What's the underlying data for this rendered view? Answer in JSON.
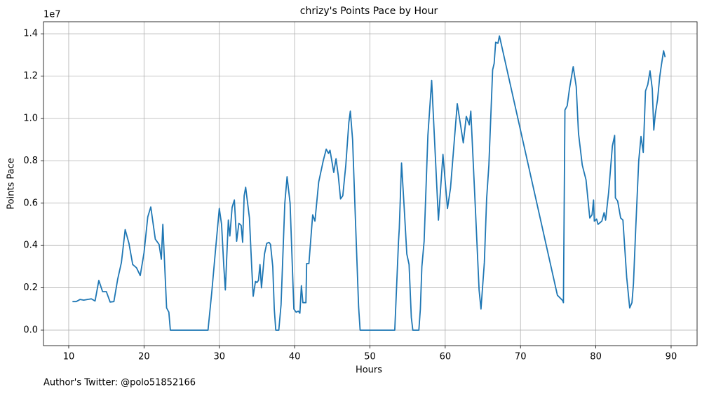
{
  "chart_data": {
    "type": "line",
    "title": "chrizy's Points Pace by Hour",
    "x_label": "Hours",
    "y_label": "Points Pace",
    "offset_label": "1e7",
    "footnote": "Author's Twitter: @polo51852166",
    "color": "#1f77b4",
    "grid": true,
    "xlim": [
      6.65,
      93.45
    ],
    "ylim": [
      -0.073,
      1.457
    ],
    "xticks": [
      10,
      20,
      30,
      40,
      50,
      60,
      70,
      80,
      90
    ],
    "yticks": [
      {
        "value": 0,
        "label": "0.0"
      },
      0.2,
      0.4,
      0.6,
      0.8,
      {
        "value": 1,
        "label": "1.0"
      },
      1.2,
      1.4
    ],
    "x": [
      10.5,
      11,
      11.5,
      12,
      12.5,
      13,
      13.5,
      14,
      14.5,
      15,
      15.5,
      16,
      16.5,
      17,
      17.5,
      18,
      18.5,
      19,
      19.5,
      20,
      20.5,
      20.9,
      21.5,
      22,
      22.3,
      22.5,
      23,
      23.3,
      23.5,
      28.5,
      29,
      29.5,
      30,
      30.3,
      30.6,
      30.8,
      31.2,
      31.4,
      31.7,
      32,
      32.3,
      32.6,
      32.9,
      33.1,
      33.3,
      33.5,
      34,
      34.3,
      34.5,
      34.8,
      35,
      35.2,
      35.4,
      35.6,
      36,
      36.3,
      36.6,
      36.8,
      37.1,
      37.3,
      37.5,
      37.9,
      38.2,
      38.7,
      39,
      39.4,
      39.7,
      39.9,
      40.2,
      40.5,
      40.7,
      40.9,
      41.1,
      41.5,
      41.6,
      41.9,
      42.4,
      42.7,
      43.2,
      43.8,
      44.2,
      44.5,
      44.7,
      45.2,
      45.5,
      45.8,
      46.1,
      46.4,
      46.8,
      47.2,
      47.4,
      47.7,
      48.1,
      48.5,
      48.7,
      53.3,
      53.8,
      53.9,
      54.2,
      54.6,
      54.9,
      55.2,
      55.5,
      55.7,
      56.5,
      56.7,
      56.9,
      57.2,
      57.7,
      58.2,
      59.1,
      59.7,
      60.3,
      60.7,
      61.6,
      62.4,
      62.8,
      63.2,
      63.4,
      64,
      64.5,
      64.75,
      65.2,
      65.5,
      65.8,
      66.3,
      66.5,
      66.7,
      67,
      67.2,
      74.9,
      75.6,
      75.7,
      75.9,
      76.2,
      76.5,
      77,
      77.4,
      77.7,
      78.2,
      78.7,
      79.2,
      79.5,
      79.7,
      79.8,
      80.1,
      80.3,
      80.8,
      81.1,
      81.3,
      81.7,
      82.2,
      82.5,
      82.6,
      82.9,
      83.3,
      83.6,
      84.1,
      84.5,
      84.8,
      85,
      85.3,
      85.7,
      86,
      86.3,
      86.6,
      86.9,
      87.2,
      87.5,
      87.7,
      87.9,
      88.2,
      88.5,
      88.7,
      89,
      89.2
    ],
    "values": [
      0.135,
      0.135,
      0.145,
      0.142,
      0.145,
      0.148,
      0.138,
      0.235,
      0.182,
      0.182,
      0.133,
      0.135,
      0.24,
      0.32,
      0.475,
      0.41,
      0.31,
      0.295,
      0.258,
      0.365,
      0.535,
      0.582,
      0.43,
      0.405,
      0.335,
      0.5,
      0.105,
      0.085,
      0,
      0,
      0.18,
      0.38,
      0.575,
      0.5,
      0.3,
      0.19,
      0.52,
      0.445,
      0.58,
      0.615,
      0.42,
      0.505,
      0.495,
      0.415,
      0.635,
      0.675,
      0.53,
      0.3,
      0.16,
      0.23,
      0.225,
      0.235,
      0.31,
      0.2,
      0.36,
      0.41,
      0.415,
      0.405,
      0.3,
      0.1,
      0,
      0,
      0.12,
      0.6,
      0.725,
      0.6,
      0.3,
      0.1,
      0.085,
      0.09,
      0.08,
      0.21,
      0.13,
      0.13,
      0.315,
      0.315,
      0.545,
      0.515,
      0.7,
      0.8,
      0.855,
      0.835,
      0.85,
      0.745,
      0.81,
      0.73,
      0.62,
      0.635,
      0.78,
      0.98,
      1.035,
      0.9,
      0.5,
      0.11,
      0,
      0,
      0.42,
      0.48,
      0.79,
      0.55,
      0.36,
      0.31,
      0.06,
      0,
      0,
      0.1,
      0.3,
      0.42,
      0.92,
      1.18,
      0.52,
      0.83,
      0.575,
      0.67,
      1.07,
      0.885,
      1.01,
      0.97,
      1.035,
      0.58,
      0.19,
      0.1,
      0.32,
      0.62,
      0.78,
      1.23,
      1.26,
      1.36,
      1.355,
      1.39,
      0.165,
      0.14,
      0.13,
      1.04,
      1.06,
      1.14,
      1.245,
      1.15,
      0.93,
      0.78,
      0.71,
      0.53,
      0.545,
      0.615,
      0.515,
      0.525,
      0.5,
      0.515,
      0.555,
      0.52,
      0.65,
      0.87,
      0.92,
      0.625,
      0.61,
      0.53,
      0.52,
      0.25,
      0.105,
      0.13,
      0.22,
      0.48,
      0.8,
      0.915,
      0.84,
      1.13,
      1.16,
      1.225,
      1.14,
      0.945,
      1.02,
      1.09,
      1.2,
      1.25,
      1.32,
      1.29
    ]
  }
}
